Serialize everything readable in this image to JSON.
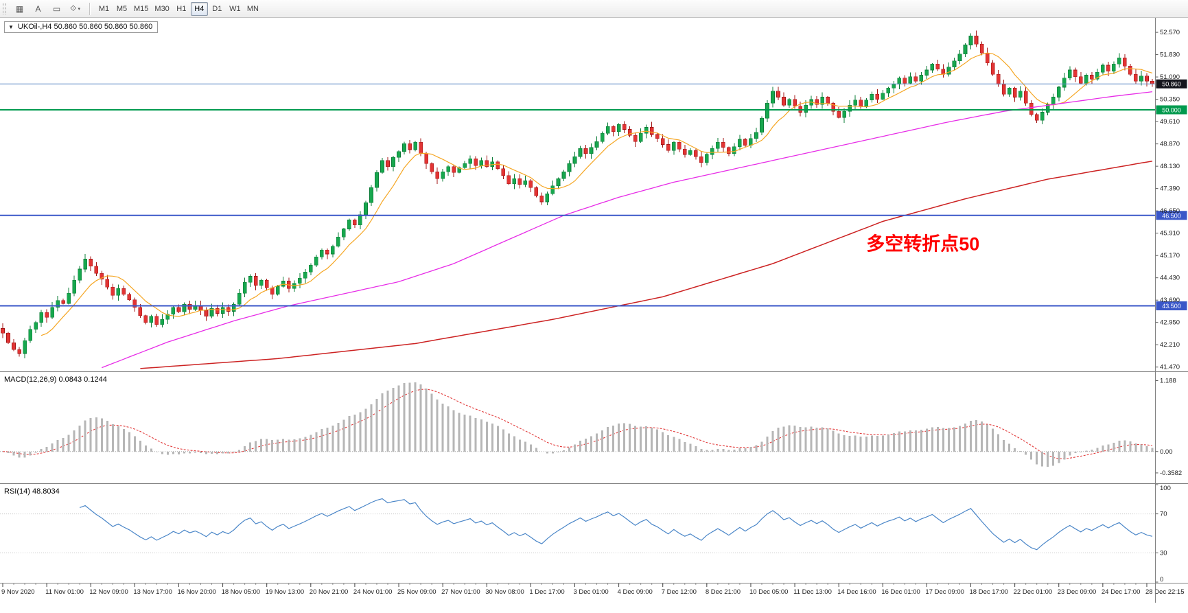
{
  "toolbar": {
    "tools": [
      {
        "name": "indicators-icon",
        "glyph": "▦"
      },
      {
        "name": "text-label-icon",
        "glyph": "A"
      },
      {
        "name": "objects-icon",
        "glyph": "▭"
      },
      {
        "name": "shapes-dropdown-icon",
        "glyph": "⟐",
        "caret": "▾"
      }
    ],
    "timeframes": [
      "M1",
      "M5",
      "M15",
      "M30",
      "H1",
      "H4",
      "D1",
      "W1",
      "MN"
    ],
    "active_timeframe": "H4"
  },
  "chart": {
    "symbol_caret": "▼",
    "symbol_label": "UKOil-,H4 50.860 50.860 50.860 50.860",
    "annotation": {
      "text": "多空转折点50",
      "color": "#ff0000",
      "price": 45.35,
      "index": 157,
      "font_size": 27
    },
    "price_ticks": [
      "52.570",
      "51.830",
      "51.090",
      "50.350",
      "49.610",
      "48.870",
      "48.130",
      "47.390",
      "46.650",
      "45.910",
      "45.170",
      "44.430",
      "43.690",
      "42.950",
      "42.210",
      "41.470"
    ],
    "hlines": [
      {
        "name": "current-price-line",
        "price": "50.860",
        "color": "#5b87c5",
        "width": 1,
        "label_bg": "#15161d"
      },
      {
        "name": "pivot-line-50000",
        "price": "50.000",
        "color": "#009a4e",
        "width": 2,
        "label_bg": "#009a4e"
      },
      {
        "name": "support-line-46500",
        "price": "46.500",
        "color": "#3a57c8",
        "width": 2,
        "label_bg": "#3a57c8"
      },
      {
        "name": "support-line-43500",
        "price": "43.500",
        "color": "#3a57c8",
        "width": 2,
        "label_bg": "#3a57c8"
      }
    ],
    "colors": {
      "up": "#17a74e",
      "up_stroke": "#0b7c37",
      "down": "#e23434",
      "down_stroke": "#a31515",
      "ma_fast": "#f5a623",
      "ma_mid": "#e72ce7",
      "ma_slow": "#cc2222",
      "macd_hist": "#b6b6b6",
      "macd_signal": "#e23a3a",
      "rsi": "#4a86c8"
    }
  },
  "macd": {
    "label": "MACD(12,26,9) 0.0843 0.1244",
    "ticks": [
      {
        "value": 1.188,
        "text": "1.188"
      },
      {
        "value": 0,
        "text": "0.00"
      },
      {
        "value": -0.3582,
        "text": "-0.3582"
      }
    ]
  },
  "rsi": {
    "label": "RSI(14) 48.8034",
    "ticks": [
      {
        "value": 100,
        "text": "100"
      },
      {
        "value": 70,
        "text": "70"
      },
      {
        "value": 30,
        "text": "30"
      },
      {
        "value": 0,
        "text": "0"
      }
    ],
    "levels": [
      70,
      30
    ]
  },
  "time_axis": [
    "9 Nov 2020",
    "11 Nov 01:00",
    "12 Nov 09:00",
    "13 Nov 17:00",
    "16 Nov 20:00",
    "18 Nov 05:00",
    "19 Nov 13:00",
    "20 Nov 21:00",
    "24 Nov 01:00",
    "25 Nov 09:00",
    "27 Nov 01:00",
    "30 Nov 08:00",
    "1 Dec 17:00",
    "3 Dec 01:00",
    "4 Dec 09:00",
    "7 Dec 12:00",
    "8 Dec 21:00",
    "10 Dec 05:00",
    "11 Dec 13:00",
    "14 Dec 16:00",
    "16 Dec 01:00",
    "17 Dec 09:00",
    "18 Dec 17:00",
    "22 Dec 01:00",
    "23 Dec 09:00",
    "24 Dec 17:00",
    "28 Dec 22:15"
  ],
  "chart_data": {
    "type": "candlestick",
    "symbol": "UKOil-",
    "timeframe": "H4",
    "current_price": 50.86,
    "price_range": [
      41.47,
      52.57
    ],
    "open_first": 42.75,
    "close": [
      42.6,
      42.28,
      42.05,
      41.92,
      42.35,
      42.72,
      42.95,
      43.28,
      43.12,
      43.45,
      43.68,
      43.58,
      43.92,
      44.35,
      44.72,
      45.05,
      44.82,
      44.58,
      44.38,
      44.12,
      43.85,
      44.08,
      43.88,
      43.7,
      43.45,
      43.18,
      42.95,
      43.15,
      42.88,
      43.05,
      43.22,
      43.45,
      43.3,
      43.55,
      43.38,
      43.5,
      43.35,
      43.15,
      43.42,
      43.25,
      43.45,
      43.32,
      43.55,
      43.92,
      44.28,
      44.48,
      44.18,
      44.35,
      44.1,
      43.88,
      44.15,
      44.32,
      44.08,
      44.25,
      44.42,
      44.62,
      44.85,
      45.12,
      45.35,
      45.22,
      45.48,
      45.78,
      46.05,
      46.35,
      46.18,
      46.52,
      46.92,
      47.42,
      47.92,
      48.32,
      48.12,
      48.42,
      48.62,
      48.88,
      48.68,
      48.92,
      48.55,
      48.22,
      47.95,
      47.72,
      47.95,
      48.12,
      47.92,
      48.08,
      48.22,
      48.38,
      48.15,
      48.32,
      48.12,
      48.28,
      48.05,
      47.82,
      47.55,
      47.72,
      47.52,
      47.65,
      47.42,
      47.15,
      46.95,
      47.22,
      47.48,
      47.72,
      47.95,
      48.22,
      48.45,
      48.72,
      48.55,
      48.75,
      48.95,
      49.22,
      49.45,
      49.28,
      49.52,
      49.35,
      49.15,
      48.95,
      49.22,
      49.42,
      49.18,
      49.05,
      48.85,
      48.65,
      48.92,
      48.7,
      48.52,
      48.65,
      48.45,
      48.25,
      48.52,
      48.72,
      48.92,
      48.75,
      48.55,
      48.78,
      49.02,
      48.82,
      49.05,
      49.25,
      49.72,
      50.22,
      50.62,
      50.42,
      50.15,
      50.35,
      50.12,
      49.92,
      50.15,
      50.35,
      50.18,
      50.42,
      50.22,
      49.95,
      49.75,
      49.95,
      50.15,
      50.32,
      50.12,
      50.32,
      50.52,
      50.35,
      50.55,
      50.72,
      50.85,
      51.05,
      50.88,
      51.1,
      50.95,
      51.15,
      51.32,
      51.52,
      51.35,
      51.18,
      51.42,
      51.62,
      51.85,
      52.15,
      52.45,
      52.18,
      51.88,
      51.55,
      51.18,
      50.85,
      50.52,
      50.72,
      50.42,
      50.62,
      50.22,
      49.85,
      49.65,
      49.92,
      50.18,
      50.42,
      50.75,
      51.05,
      51.32,
      51.1,
      50.88,
      51.15,
      51.02,
      51.25,
      51.48,
      51.28,
      51.52,
      51.72,
      51.45,
      51.18,
      50.95,
      51.12,
      50.95,
      50.86
    ],
    "ma_fast_period": 8,
    "ma_mid_anchors": [
      [
        18,
        41.45
      ],
      [
        30,
        42.3
      ],
      [
        42,
        43.0
      ],
      [
        52,
        43.5
      ],
      [
        62,
        43.9
      ],
      [
        72,
        44.3
      ],
      [
        82,
        44.9
      ],
      [
        92,
        45.7
      ],
      [
        102,
        46.5
      ],
      [
        112,
        47.1
      ],
      [
        122,
        47.6
      ],
      [
        132,
        48.0
      ],
      [
        142,
        48.4
      ],
      [
        152,
        48.8
      ],
      [
        162,
        49.2
      ],
      [
        172,
        49.6
      ],
      [
        182,
        49.95
      ],
      [
        192,
        50.2
      ],
      [
        202,
        50.45
      ],
      [
        209,
        50.6
      ]
    ],
    "ma_slow_anchors": [
      [
        25,
        41.42
      ],
      [
        50,
        41.75
      ],
      [
        75,
        42.25
      ],
      [
        100,
        43.05
      ],
      [
        120,
        43.8
      ],
      [
        140,
        44.9
      ],
      [
        160,
        46.3
      ],
      [
        175,
        47.05
      ],
      [
        190,
        47.7
      ],
      [
        209,
        48.3
      ]
    ],
    "macd_params": {
      "fast": 12,
      "slow": 26,
      "signal": 9
    },
    "rsi_period": 14
  }
}
